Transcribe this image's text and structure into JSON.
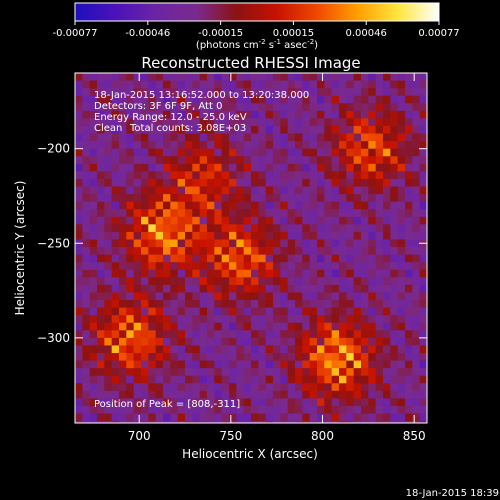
{
  "chart_data": {
    "type": "heatmap",
    "title": "Reconstructed RHESSI Image",
    "xlabel": "Heliocentric X (arcsec)",
    "ylabel": "Heliocentric Y (arcsec)",
    "xlim": [
      665,
      857
    ],
    "ylim": [
      -345,
      -160
    ],
    "xticks": [
      700,
      750,
      800,
      850
    ],
    "yticks": [
      -200,
      -250,
      -300
    ],
    "colorbar": {
      "range": [
        -0.00077,
        0.00077
      ],
      "tick_labels": [
        "-0.00077",
        "-0.00046",
        "-0.00015",
        "0.00015",
        "0.00046",
        "0.00077"
      ],
      "unit_label": "(photons cm",
      "unit_sup1": "-2",
      "unit_mid": " s",
      "unit_sup2": "-1",
      "unit_mid2": " asec",
      "unit_sup3": "-2",
      "unit_end": ")",
      "colormap": [
        "#1d0fbf",
        "#4b12b8",
        "#6c24a6",
        "#7a2a8e",
        "#8c1212",
        "#c81200",
        "#f04a00",
        "#ffa000",
        "#ffe640",
        "#ffffff"
      ]
    },
    "annotations": [
      "18-Jan-2015 13:16:52.000 to 13:20:38.000",
      "Detectors: 3F 6F 9F, Att 0",
      "Energy Range: 12.0 - 25.0 keV",
      "Clean",
      "Total counts: 3.08E+03"
    ],
    "peak_label": "Position of Peak = [808,-311]",
    "peak": [
      808,
      -311
    ],
    "emission_sources": [
      {
        "x": 712,
        "y": -245,
        "intensity": 0.9
      },
      {
        "x": 695,
        "y": -300,
        "intensity": 0.85
      },
      {
        "x": 755,
        "y": -258,
        "intensity": 0.8
      },
      {
        "x": 735,
        "y": -215,
        "intensity": 0.6
      },
      {
        "x": 826,
        "y": -200,
        "intensity": 0.75
      },
      {
        "x": 808,
        "y": -311,
        "intensity": 1.0
      }
    ]
  },
  "footer": {
    "timestamp": "18-Jan-2015 18:39"
  }
}
